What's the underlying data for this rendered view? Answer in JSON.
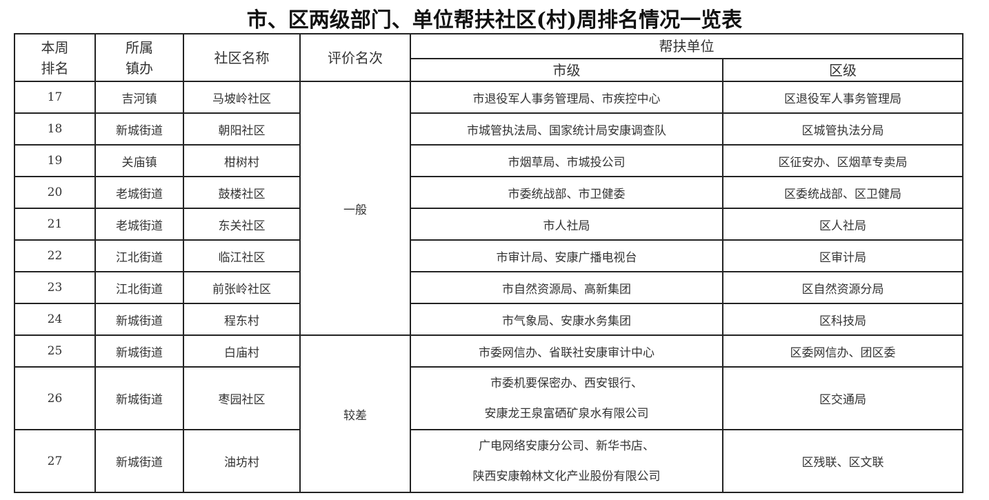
{
  "title": "市、区两级部门、单位帮扶社区(村)周排名情况一览表",
  "headers": {
    "rank": [
      "本周",
      "排名"
    ],
    "town": [
      "所属",
      "镇办"
    ],
    "community": "社区名称",
    "evaluation": "评价名次",
    "support": "帮扶单位",
    "city": "市级",
    "district": "区级"
  },
  "evaluations": [
    {
      "label": "一般",
      "rows": 8
    },
    {
      "label": "较差",
      "rows": 3
    }
  ],
  "rows": [
    {
      "rank": "17",
      "town": "吉河镇",
      "community": "马坡岭社区",
      "city": [
        "市退役军人事务管理局、市疾控中心"
      ],
      "district": "区退役军人事务管理局"
    },
    {
      "rank": "18",
      "town": "新城街道",
      "community": "朝阳社区",
      "city": [
        "市城管执法局、国家统计局安康调查队"
      ],
      "district": "区城管执法分局"
    },
    {
      "rank": "19",
      "town": "关庙镇",
      "community": "柑树村",
      "city": [
        "市烟草局、市城投公司"
      ],
      "district": "区征安办、区烟草专卖局"
    },
    {
      "rank": "20",
      "town": "老城街道",
      "community": "鼓楼社区",
      "city": [
        "市委统战部、市卫健委"
      ],
      "district": "区委统战部、区卫健局"
    },
    {
      "rank": "21",
      "town": "老城街道",
      "community": "东关社区",
      "city": [
        "市人社局"
      ],
      "district": "区人社局"
    },
    {
      "rank": "22",
      "town": "江北街道",
      "community": "临江社区",
      "city": [
        "市审计局、安康广播电视台"
      ],
      "district": "区审计局"
    },
    {
      "rank": "23",
      "town": "江北街道",
      "community": "前张岭社区",
      "city": [
        "市自然资源局、高新集团"
      ],
      "district": "区自然资源分局"
    },
    {
      "rank": "24",
      "town": "新城街道",
      "community": "程东村",
      "city": [
        "市气象局、安康水务集团"
      ],
      "district": "区科技局"
    },
    {
      "rank": "25",
      "town": "新城街道",
      "community": "白庙村",
      "city": [
        "市委网信办、省联社安康审计中心"
      ],
      "district": "区委网信办、团区委"
    },
    {
      "rank": "26",
      "town": "新城街道",
      "community": "枣园社区",
      "city": [
        "市委机要保密办、西安银行、",
        "安康龙王泉富硒矿泉水有限公司"
      ],
      "district": "区交通局"
    },
    {
      "rank": "27",
      "town": "新城街道",
      "community": "油坊村",
      "city": [
        "广电网络安康分公司、新华书店、",
        "陕西安康翰林文化产业股份有限公司"
      ],
      "district": "区残联、区文联"
    }
  ]
}
